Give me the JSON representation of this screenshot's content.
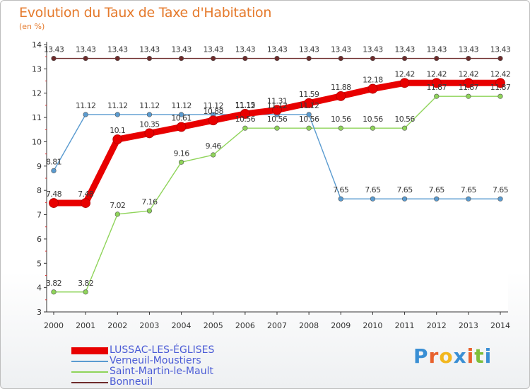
{
  "header": {
    "title": "Evolution du Taux de Taxe d'Habitation",
    "unit": "(en %)"
  },
  "logo": {
    "text": "Proxiti",
    "colors": [
      "#3a8fd4",
      "#e8612c",
      "#f2b71f",
      "#3a8fd4",
      "#e8612c",
      "#7fbf3a",
      "#3a8fd4"
    ]
  },
  "chart_data": {
    "type": "line",
    "title": "Evolution du Taux de Taxe d'Habitation",
    "ylabel": "(en %)",
    "xlabel": "",
    "ylim": [
      3,
      14
    ],
    "yticks": [
      3,
      4,
      5,
      6,
      7,
      8,
      9,
      10,
      11,
      12,
      13,
      14
    ],
    "categories": [
      "2000",
      "2001",
      "2002",
      "2003",
      "2004",
      "2005",
      "2006",
      "2007",
      "2008",
      "2009",
      "2010",
      "2011",
      "2012",
      "2013",
      "2014"
    ],
    "series": [
      {
        "name": "Bonneuil",
        "color": "#6e2b2b",
        "values": [
          13.43,
          13.43,
          13.43,
          13.43,
          13.43,
          13.43,
          13.43,
          13.43,
          13.43,
          13.43,
          13.43,
          13.43,
          13.43,
          13.43,
          13.43
        ],
        "labels": [
          "13.43",
          "13.43",
          "13.43",
          "13.43",
          "13.43",
          "13.43",
          "13.43",
          "13.43",
          "13.43",
          "13.43",
          "13.43",
          "13.43",
          "13.43",
          "13.43",
          "13.43"
        ]
      },
      {
        "name": "Saint-Martin-le-Mault",
        "color": "#8fd45a",
        "values": [
          3.82,
          3.82,
          7.02,
          7.16,
          9.16,
          9.46,
          10.56,
          10.56,
          10.56,
          10.56,
          10.56,
          10.56,
          11.87,
          11.87,
          11.87
        ],
        "labels": [
          "3.82",
          "3.82",
          "7.02",
          "7.16",
          "9.16",
          "9.46",
          "10.56",
          "10.56",
          "10.56",
          "10.56",
          "10.56",
          "10.56",
          "11.87",
          "11.87",
          "11.87"
        ]
      },
      {
        "name": "Verneuil-Moustiers",
        "color": "#5a9bd0",
        "values": [
          8.81,
          11.12,
          11.12,
          11.12,
          11.12,
          11.12,
          11.12,
          11.12,
          11.12,
          7.65,
          7.65,
          7.65,
          7.65,
          7.65,
          7.65
        ],
        "labels": [
          "8.81",
          "11.12",
          "11.12",
          "11.12",
          "11.12",
          "11.12",
          "11.12",
          "11.12",
          "11.12",
          "7.65",
          "7.65",
          "7.65",
          "7.65",
          "7.65",
          "7.65"
        ]
      },
      {
        "name": "LUSSAC-LES-ÉGLISES",
        "color": "#e80000",
        "values": [
          7.48,
          7.48,
          10.1,
          10.35,
          10.61,
          10.88,
          11.15,
          11.31,
          11.59,
          11.88,
          12.18,
          12.42,
          12.42,
          12.42,
          12.42
        ],
        "labels": [
          "7.48",
          "7.48",
          "10.1",
          "10.35",
          "10.61",
          "10.88",
          "11.15",
          "11.31",
          "11.59",
          "11.88",
          "12.18",
          "12.42",
          "12.42",
          "12.42",
          "12.42"
        ]
      }
    ],
    "legend": [
      {
        "name": "LUSSAC-LES-ÉGLISES",
        "color": "#e80000",
        "style": "thick"
      },
      {
        "name": "Verneuil-Moustiers",
        "color": "#5a9bd0",
        "style": "thin"
      },
      {
        "name": "Saint-Martin-le-Mault",
        "color": "#8fd45a",
        "style": "thin"
      },
      {
        "name": "Bonneuil",
        "color": "#6e2b2b",
        "style": "thin"
      }
    ]
  }
}
